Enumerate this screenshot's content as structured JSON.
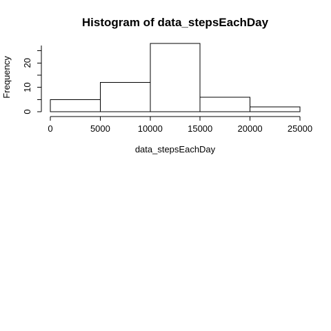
{
  "chart_data": {
    "type": "bar",
    "title": "Histogram of data_stepsEachDay",
    "xlabel": "data_stepsEachDay",
    "ylabel": "Frequency",
    "bins": [
      {
        "from": 0,
        "to": 5000,
        "count": 5
      },
      {
        "from": 5000,
        "to": 10000,
        "count": 12
      },
      {
        "from": 10000,
        "to": 15000,
        "count": 28
      },
      {
        "from": 15000,
        "to": 20000,
        "count": 6
      },
      {
        "from": 20000,
        "to": 25000,
        "count": 2
      }
    ],
    "x_ticks": [
      "0",
      "5000",
      "10000",
      "15000",
      "20000",
      "25000"
    ],
    "y_ticks": [
      "0",
      "10",
      "20"
    ],
    "xlim": [
      0,
      25000
    ],
    "ylim": [
      0,
      28
    ],
    "grid": false,
    "colors": {
      "bar_fill": "#ffffff",
      "bar_stroke": "#000000",
      "axis": "#000000",
      "text": "#000000"
    }
  }
}
